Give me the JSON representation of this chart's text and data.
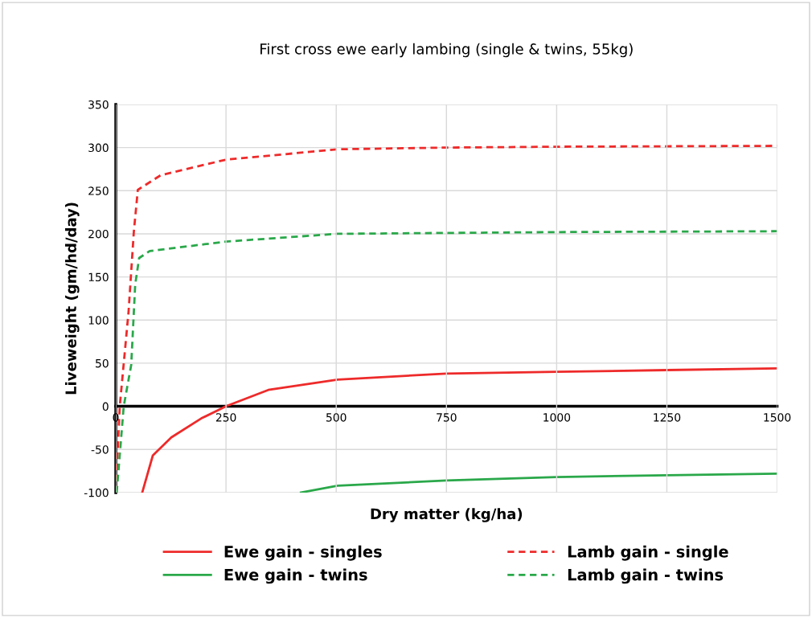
{
  "chart_data": {
    "type": "line",
    "title": "First cross ewe early lambing (single & twins, 55kg)",
    "xlabel": "Dry matter (kg/ha)",
    "ylabel": "Liveweight (gm/hd/day)",
    "xlim": [
      0,
      1500
    ],
    "xticks": [
      0,
      250,
      500,
      750,
      1000,
      1250,
      1500
    ],
    "ylim": [
      -100,
      350
    ],
    "yticks": [
      -100,
      -50,
      0,
      50,
      100,
      150,
      200,
      250,
      300,
      350
    ],
    "grid": true,
    "legend": "bottom",
    "marker": "none",
    "series": [
      {
        "name": "Ewe gain - singles",
        "color": "#ee2a2a",
        "line_style": "solid",
        "x": [
          60,
          84,
          126,
          194,
          250,
          346,
          503,
          750,
          1000,
          1250,
          1500
        ],
        "values": [
          -100,
          -57,
          -36,
          -14,
          0,
          19,
          31,
          38,
          40,
          42,
          44
        ]
      },
      {
        "name": "Ewe gain - twins",
        "color": "#2aa84a",
        "line_style": "solid",
        "x": [
          420,
          503,
          750,
          1000,
          1250,
          1500
        ],
        "values": [
          -100,
          -92,
          -86,
          -82,
          -80,
          -78
        ]
      },
      {
        "name": "Lamb gain - single",
        "color": "#ee2a2a",
        "line_style": "dashed",
        "x": [
          0,
          9,
          29,
          41,
          50,
          102,
          250,
          503,
          750,
          1000,
          1500
        ],
        "values": [
          -100,
          0,
          110,
          203,
          251,
          268,
          286,
          298,
          300,
          301,
          302
        ]
      },
      {
        "name": "Lamb gain - twins",
        "color": "#2aa84a",
        "line_style": "dashed",
        "x": [
          2,
          18,
          35,
          44,
          53,
          77,
          250,
          503,
          750,
          1000,
          1500
        ],
        "values": [
          -100,
          0,
          48,
          141,
          172,
          180,
          191,
          200,
          201,
          202,
          203
        ]
      }
    ]
  }
}
